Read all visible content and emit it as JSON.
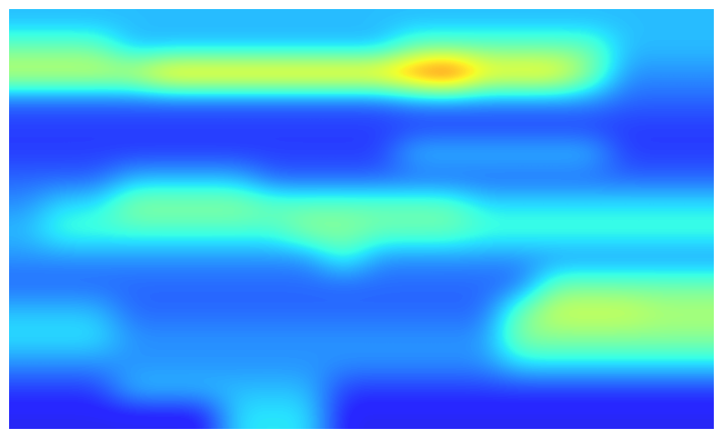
{
  "chart_data": {
    "type": "heatmap",
    "tick_labels": false,
    "crange": [
      0,
      1
    ],
    "cells": [
      [
        0.3,
        0.3,
        0.3,
        0.3,
        0.3,
        0.3,
        0.3,
        0.3,
        0.3,
        0.3,
        0.3,
        0.3,
        0.3,
        0.3,
        0.3,
        0.3,
        0.3,
        0.3,
        0.3,
        0.3
      ],
      [
        0.45,
        0.45,
        0.45,
        0.3,
        0.3,
        0.3,
        0.3,
        0.3,
        0.3,
        0.3,
        0.3,
        0.45,
        0.45,
        0.45,
        0.45,
        0.45,
        0.45,
        0.3,
        0.3,
        0.3
      ],
      [
        0.6,
        0.6,
        0.6,
        0.6,
        0.75,
        0.75,
        0.75,
        0.75,
        0.75,
        0.75,
        0.75,
        0.85,
        0.95,
        0.7,
        0.7,
        0.7,
        0.5,
        0.25,
        0.25,
        0.25
      ],
      [
        0.2,
        0.2,
        0.2,
        0.2,
        0.2,
        0.2,
        0.2,
        0.2,
        0.2,
        0.2,
        0.2,
        0.25,
        0.25,
        0.25,
        0.25,
        0.25,
        0.25,
        0.2,
        0.2,
        0.2
      ],
      [
        0.15,
        0.15,
        0.15,
        0.15,
        0.15,
        0.15,
        0.15,
        0.15,
        0.15,
        0.15,
        0.15,
        0.15,
        0.15,
        0.15,
        0.15,
        0.15,
        0.15,
        0.15,
        0.15,
        0.15
      ],
      [
        0.15,
        0.15,
        0.15,
        0.15,
        0.15,
        0.15,
        0.15,
        0.15,
        0.15,
        0.15,
        0.15,
        0.3,
        0.3,
        0.3,
        0.3,
        0.3,
        0.3,
        0.15,
        0.15,
        0.15
      ],
      [
        0.2,
        0.2,
        0.2,
        0.3,
        0.3,
        0.3,
        0.3,
        0.2,
        0.2,
        0.2,
        0.2,
        0.2,
        0.2,
        0.2,
        0.2,
        0.2,
        0.2,
        0.2,
        0.2,
        0.2
      ],
      [
        0.25,
        0.35,
        0.35,
        0.5,
        0.5,
        0.5,
        0.5,
        0.45,
        0.45,
        0.45,
        0.45,
        0.45,
        0.45,
        0.35,
        0.35,
        0.35,
        0.35,
        0.35,
        0.35,
        0.35
      ],
      [
        0.3,
        0.4,
        0.4,
        0.4,
        0.4,
        0.4,
        0.4,
        0.4,
        0.5,
        0.5,
        0.45,
        0.45,
        0.45,
        0.4,
        0.4,
        0.4,
        0.4,
        0.4,
        0.4,
        0.4
      ],
      [
        0.25,
        0.25,
        0.25,
        0.25,
        0.25,
        0.25,
        0.25,
        0.25,
        0.25,
        0.4,
        0.25,
        0.25,
        0.25,
        0.25,
        0.25,
        0.25,
        0.25,
        0.25,
        0.25,
        0.25
      ],
      [
        0.2,
        0.2,
        0.2,
        0.2,
        0.2,
        0.2,
        0.2,
        0.2,
        0.2,
        0.2,
        0.2,
        0.2,
        0.2,
        0.2,
        0.2,
        0.45,
        0.45,
        0.45,
        0.45,
        0.45
      ],
      [
        0.3,
        0.3,
        0.3,
        0.2,
        0.2,
        0.2,
        0.2,
        0.2,
        0.2,
        0.2,
        0.2,
        0.2,
        0.2,
        0.2,
        0.45,
        0.6,
        0.6,
        0.6,
        0.55,
        0.55
      ],
      [
        0.35,
        0.35,
        0.35,
        0.25,
        0.25,
        0.25,
        0.25,
        0.25,
        0.25,
        0.25,
        0.25,
        0.25,
        0.25,
        0.25,
        0.5,
        0.5,
        0.5,
        0.5,
        0.5,
        0.5
      ],
      [
        0.25,
        0.25,
        0.25,
        0.25,
        0.25,
        0.25,
        0.25,
        0.25,
        0.25,
        0.25,
        0.25,
        0.25,
        0.25,
        0.25,
        0.35,
        0.35,
        0.35,
        0.35,
        0.35,
        0.35
      ],
      [
        0.15,
        0.15,
        0.15,
        0.3,
        0.3,
        0.3,
        0.3,
        0.3,
        0.3,
        0.15,
        0.15,
        0.15,
        0.15,
        0.15,
        0.15,
        0.15,
        0.15,
        0.15,
        0.15,
        0.15
      ],
      [
        0.1,
        0.1,
        0.1,
        0.1,
        0.1,
        0.1,
        0.35,
        0.35,
        0.35,
        0.1,
        0.1,
        0.1,
        0.1,
        0.1,
        0.1,
        0.1,
        0.1,
        0.1,
        0.1,
        0.1
      ]
    ]
  }
}
